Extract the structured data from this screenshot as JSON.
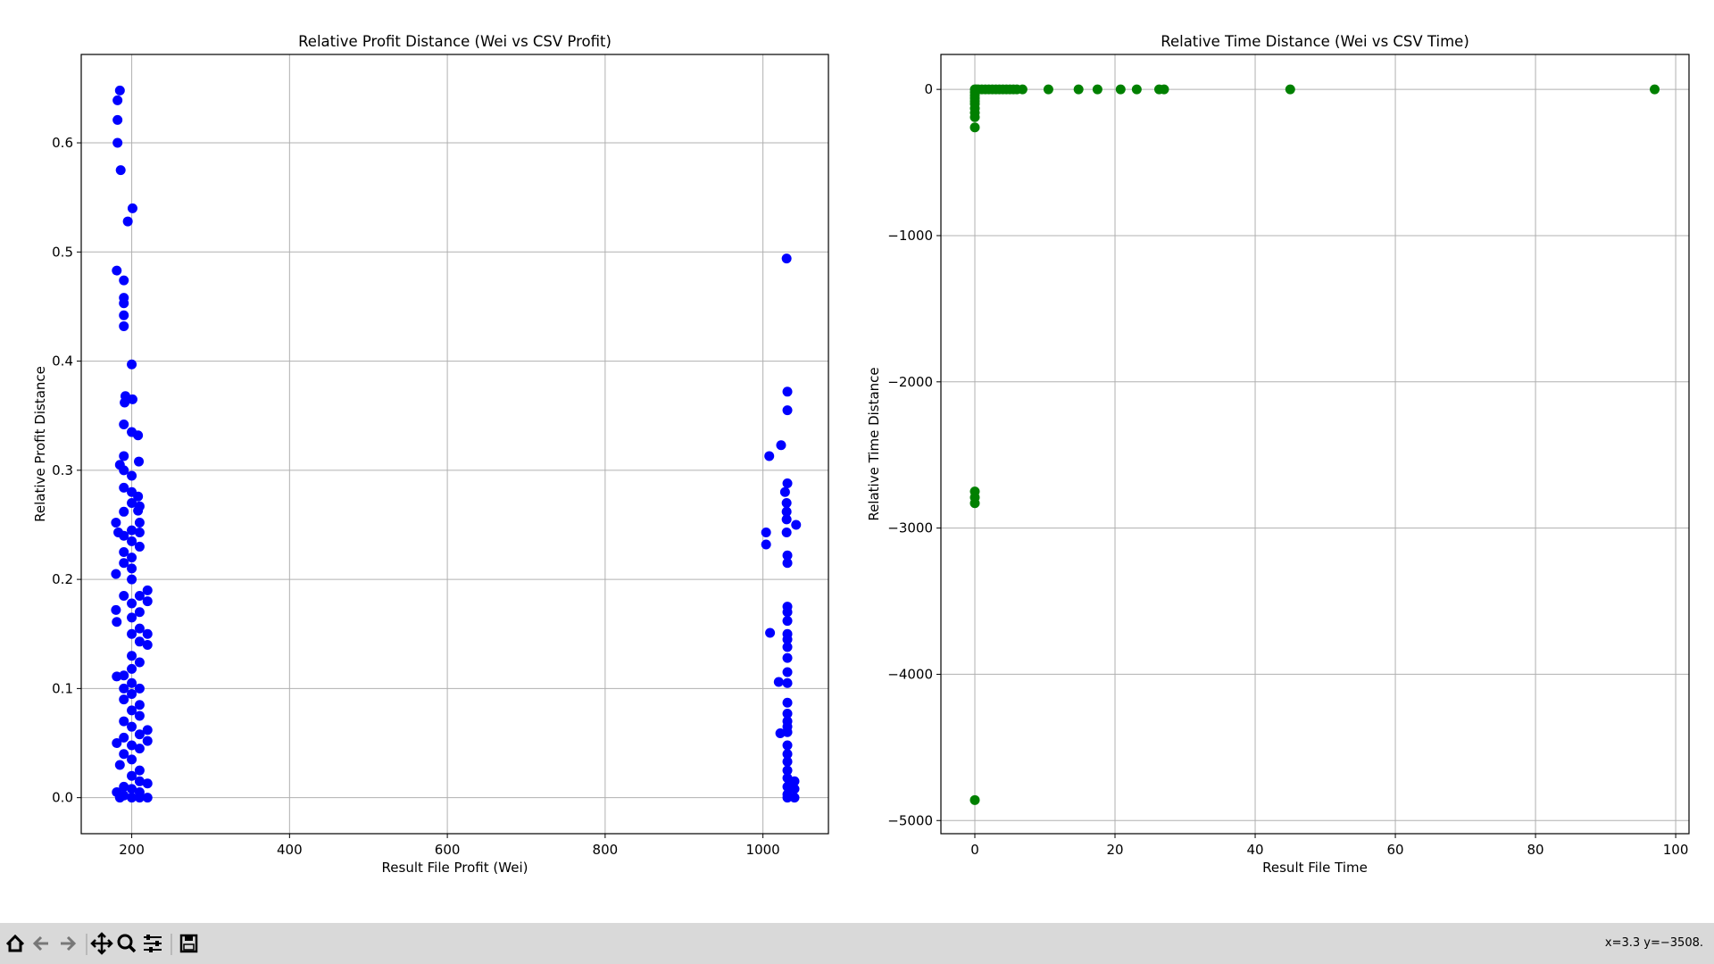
{
  "chart_data": [
    {
      "type": "scatter",
      "title": "Relative Profit Distance (Wei vs CSV Profit)",
      "xlabel": "Result File Profit (Wei)",
      "ylabel": "Relative Profit Distance",
      "color": "#0000ff",
      "grid": true,
      "xlim": [
        136,
        1083
      ],
      "ylim": [
        -0.033,
        0.681
      ],
      "xticks": [
        200,
        400,
        600,
        800,
        1000
      ],
      "yticks": [
        {
          "value": 0,
          "label": "0.0"
        },
        0.1,
        0.2,
        0.3,
        0.4,
        0.5,
        0.6
      ],
      "x": [
        185,
        182,
        182,
        182,
        186,
        201,
        195,
        181,
        190,
        190,
        190,
        190,
        190,
        200,
        192,
        201,
        191,
        190,
        200,
        208,
        190,
        185,
        209,
        190,
        200,
        190,
        200,
        208,
        200,
        210,
        208,
        190,
        210,
        180,
        183,
        200,
        210,
        190,
        200,
        210,
        190,
        200,
        190,
        200,
        180,
        200,
        220,
        190,
        210,
        220,
        200,
        180,
        210,
        200,
        181,
        210,
        220,
        200,
        220,
        210,
        200,
        210,
        200,
        190,
        181,
        200,
        210,
        190,
        200,
        190,
        210,
        200,
        210,
        190,
        200,
        220,
        210,
        190,
        220,
        181,
        200,
        210,
        190,
        200,
        185,
        210,
        200,
        210,
        220,
        190,
        200,
        181,
        210,
        190,
        200,
        210,
        220,
        185,
        1030,
        1031,
        1031,
        1023,
        1008,
        1031,
        1028,
        1030,
        1030,
        1030,
        1042,
        1030,
        1004,
        1004,
        1031,
        1031,
        1031,
        1031,
        1031,
        1009,
        1031,
        1031,
        1031,
        1031,
        1031,
        1020,
        1031,
        1031,
        1031,
        1031,
        1031,
        1022,
        1031,
        1031,
        1031,
        1031,
        1031,
        1031,
        1040,
        1031,
        1040,
        1031,
        1040,
        1031
      ],
      "values": [
        0.648,
        0.639,
        0.621,
        0.6,
        0.575,
        0.54,
        0.528,
        0.483,
        0.474,
        0.458,
        0.453,
        0.442,
        0.432,
        0.397,
        0.368,
        0.365,
        0.362,
        0.342,
        0.335,
        0.332,
        0.313,
        0.305,
        0.308,
        0.3,
        0.295,
        0.284,
        0.28,
        0.276,
        0.27,
        0.267,
        0.263,
        0.262,
        0.252,
        0.252,
        0.243,
        0.245,
        0.243,
        0.24,
        0.235,
        0.23,
        0.225,
        0.22,
        0.215,
        0.21,
        0.205,
        0.2,
        0.19,
        0.185,
        0.185,
        0.18,
        0.178,
        0.172,
        0.17,
        0.165,
        0.161,
        0.155,
        0.15,
        0.15,
        0.14,
        0.143,
        0.13,
        0.124,
        0.118,
        0.112,
        0.111,
        0.105,
        0.1,
        0.1,
        0.095,
        0.09,
        0.085,
        0.08,
        0.075,
        0.07,
        0.065,
        0.062,
        0.058,
        0.055,
        0.052,
        0.05,
        0.048,
        0.045,
        0.04,
        0.035,
        0.03,
        0.025,
        0.02,
        0.015,
        0.013,
        0.01,
        0.008,
        0.005,
        0.005,
        0.002,
        0,
        0,
        0,
        0,
        0.494,
        0.372,
        0.355,
        0.323,
        0.313,
        0.288,
        0.28,
        0.27,
        0.262,
        0.255,
        0.25,
        0.243,
        0.243,
        0.232,
        0.222,
        0.215,
        0.175,
        0.17,
        0.162,
        0.151,
        0.15,
        0.145,
        0.138,
        0.128,
        0.115,
        0.106,
        0.105,
        0.087,
        0.077,
        0.07,
        0.065,
        0.059,
        0.06,
        0.048,
        0.04,
        0.033,
        0.025,
        0.018,
        0.015,
        0.01,
        0.008,
        0.003,
        0,
        0
      ]
    },
    {
      "type": "scatter",
      "title": "Relative Time Distance (Wei vs CSV Time)",
      "xlabel": "Result File Time",
      "ylabel": "Relative Time Distance",
      "color": "#008000",
      "grid": true,
      "xlim": [
        -4.84,
        101.9
      ],
      "ylim": [
        -5090,
        239
      ],
      "xticks": [
        0,
        20,
        40,
        60,
        80,
        100
      ],
      "yticks": [
        {
          "value": -5000,
          "label": "−5000"
        },
        {
          "value": -4000,
          "label": "−4000"
        },
        {
          "value": -3000,
          "label": "−3000"
        },
        {
          "value": -2000,
          "label": "−2000"
        },
        {
          "value": -1000,
          "label": "−1000"
        },
        0
      ],
      "x": [
        0,
        0.2,
        0.5,
        1,
        1.5,
        2,
        2.5,
        3,
        3.5,
        4,
        4.5,
        5,
        5.5,
        6,
        6.8,
        10.5,
        14.8,
        17.5,
        20.8,
        23.1,
        26.3,
        27,
        45,
        97,
        0,
        0,
        0,
        0,
        0,
        0,
        0,
        0,
        0,
        0,
        0,
        0,
        0
      ],
      "values": [
        0,
        0,
        0,
        0,
        0,
        0,
        0,
        0,
        0,
        0,
        0,
        0,
        0,
        0,
        0,
        0,
        0,
        0,
        0,
        0,
        0,
        0,
        0,
        0,
        -20,
        -40,
        -60,
        -80,
        -100,
        -130,
        -160,
        -190,
        -260,
        -2750,
        -2790,
        -2830,
        -4860
      ]
    }
  ],
  "toolbar": {
    "status": "x=3.3 y=−3508."
  }
}
